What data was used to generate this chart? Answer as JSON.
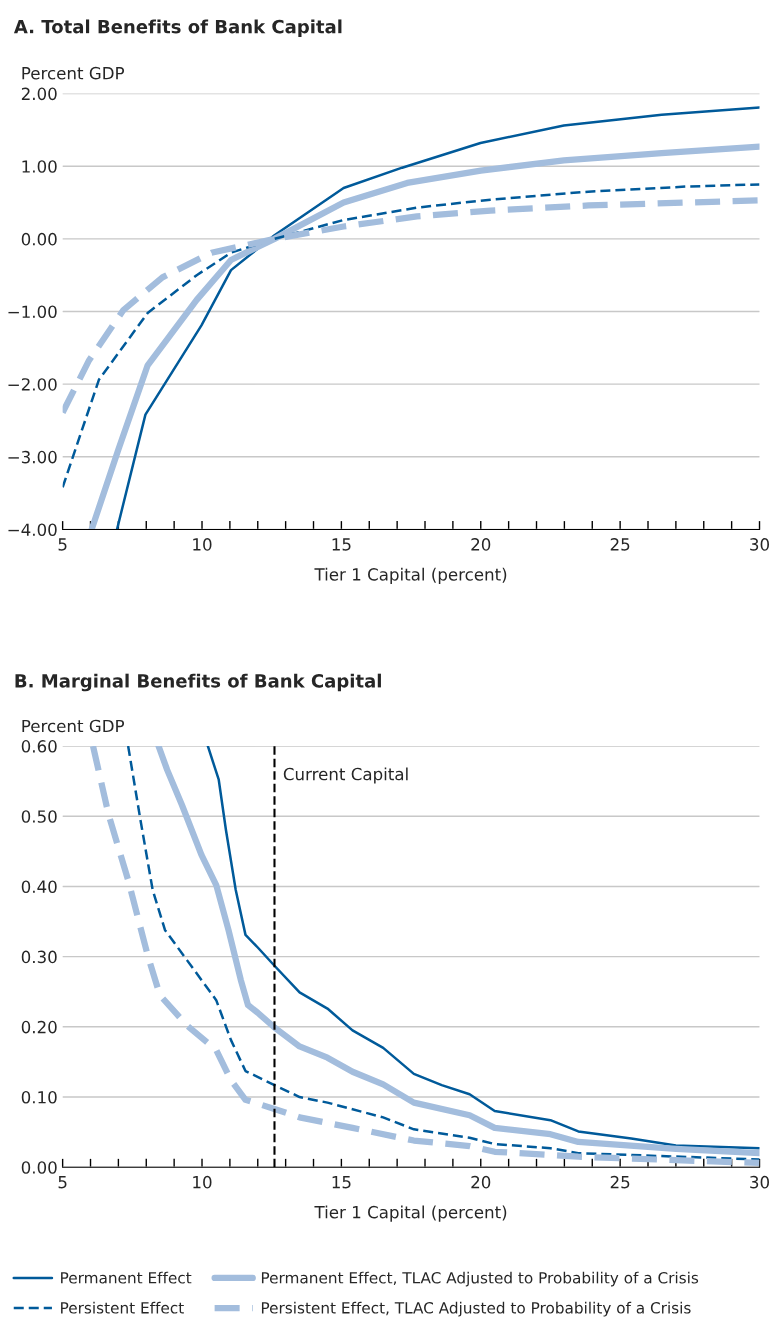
{
  "chart_data": [
    {
      "type": "line",
      "title": "A. Total Benefits of Bank Capital",
      "ylabel": "Percent GDP",
      "xlabel": "Tier 1 Capital (percent)",
      "xlim": [
        5,
        30
      ],
      "xticks": [
        5,
        {
          "value": 6,
          "label": null
        },
        {
          "value": 7,
          "label": null
        },
        {
          "value": 8,
          "label": null
        },
        {
          "value": 9,
          "label": null
        },
        10,
        {
          "value": 11,
          "label": null
        },
        {
          "value": 12,
          "label": null
        },
        {
          "value": 13,
          "label": null
        },
        {
          "value": 14,
          "label": null
        },
        15,
        {
          "value": 16,
          "label": null
        },
        {
          "value": 17,
          "label": null
        },
        {
          "value": 18,
          "label": null
        },
        {
          "value": 19,
          "label": null
        },
        20,
        {
          "value": 21,
          "label": null
        },
        {
          "value": 22,
          "label": null
        },
        {
          "value": 23,
          "label": null
        },
        {
          "value": 24,
          "label": null
        },
        25,
        {
          "value": 26,
          "label": null
        },
        {
          "value": 27,
          "label": null
        },
        {
          "value": 28,
          "label": null
        },
        {
          "value": 29,
          "label": null
        },
        30
      ],
      "ylim": [
        -4,
        2
      ],
      "yticks": [
        {
          "value": -4,
          "label": "−4.00"
        },
        {
          "value": -3,
          "label": "−3.00"
        },
        {
          "value": -2,
          "label": "−2.00"
        },
        {
          "value": -1,
          "label": "−1.00"
        },
        {
          "value": 0,
          "label": "0.00"
        },
        {
          "value": 1,
          "label": "1.00"
        },
        {
          "value": 2,
          "label": "2.00"
        }
      ],
      "grid": "y",
      "legend": false,
      "series": [
        {
          "color": "#005a9a",
          "line_style": "solid",
          "x": [
            6.95,
            7.97,
            9.98,
            11.04,
            12.6,
            15.08,
            17.18,
            19.99,
            22.98,
            26.49,
            30
          ],
          "values": [
            -4.0,
            -2.42,
            -1.19,
            -0.43,
            0.05,
            0.7,
            0.98,
            1.32,
            1.56,
            1.71,
            1.81
          ]
        },
        {
          "color": "#a3bddd",
          "line_style": "solid",
          "x": [
            6.04,
            7.0,
            8.05,
            9.81,
            11.04,
            12.6,
            15.08,
            17.36,
            20,
            22.98,
            26.49,
            30
          ],
          "values": [
            -4.0,
            -2.9,
            -1.74,
            -0.84,
            -0.29,
            0.0,
            0.5,
            0.77,
            0.94,
            1.08,
            1.18,
            1.27
          ]
        },
        {
          "color": "#005a9a",
          "line_style": "dashed",
          "x": [
            5.0,
            6.3,
            8.05,
            9.81,
            11.04,
            12.6,
            15.08,
            17.71,
            20.35,
            23.86,
            27.37,
            30
          ],
          "values": [
            -3.42,
            -1.94,
            -1.02,
            -0.5,
            -0.19,
            0.0,
            0.26,
            0.43,
            0.54,
            0.65,
            0.72,
            0.75
          ]
        },
        {
          "color": "#a3bddd",
          "line_style": "dashed",
          "x": [
            5.0,
            5.95,
            7.18,
            8.58,
            10.34,
            12.6,
            15.08,
            17.71,
            20.35,
            23.86,
            30
          ],
          "values": [
            -2.39,
            -1.67,
            -0.98,
            -0.53,
            -0.19,
            0.0,
            0.17,
            0.31,
            0.39,
            0.46,
            0.53
          ]
        }
      ]
    },
    {
      "type": "line",
      "title": "B. Marginal Benefits of Bank Capital",
      "ylabel": "Percent GDP",
      "xlabel": "Tier 1 Capital (percent)",
      "xlim": [
        5,
        30
      ],
      "xticks": [
        5,
        {
          "value": 6,
          "label": null
        },
        {
          "value": 7,
          "label": null
        },
        {
          "value": 8,
          "label": null
        },
        {
          "value": 9,
          "label": null
        },
        10,
        {
          "value": 11,
          "label": null
        },
        {
          "value": 12,
          "label": null
        },
        {
          "value": 13,
          "label": null
        },
        {
          "value": 14,
          "label": null
        },
        15,
        {
          "value": 16,
          "label": null
        },
        {
          "value": 17,
          "label": null
        },
        {
          "value": 18,
          "label": null
        },
        {
          "value": 19,
          "label": null
        },
        20,
        {
          "value": 21,
          "label": null
        },
        {
          "value": 22,
          "label": null
        },
        {
          "value": 23,
          "label": null
        },
        {
          "value": 24,
          "label": null
        },
        25,
        {
          "value": 26,
          "label": null
        },
        {
          "value": 27,
          "label": null
        },
        {
          "value": 28,
          "label": null
        },
        {
          "value": 29,
          "label": null
        },
        30
      ],
      "ylim": [
        0,
        0.6
      ],
      "yticks": [
        {
          "value": 0,
          "label": "0.00"
        },
        {
          "value": 0.1,
          "label": "0.10"
        },
        {
          "value": 0.2,
          "label": "0.20"
        },
        {
          "value": 0.3,
          "label": "0.30"
        },
        {
          "value": 0.4,
          "label": "0.40"
        },
        {
          "value": 0.5,
          "label": "0.50"
        },
        {
          "value": 0.6,
          "label": "0.60"
        }
      ],
      "grid": "y",
      "legend": "bottom",
      "ref_lines": [
        {
          "axis": "x",
          "value": 12.6,
          "label": "Current Capital",
          "color": "#000000",
          "line_style": "dashed"
        }
      ],
      "series": [
        {
          "name": "Permanent Effect",
          "color": "#005a9a",
          "line_style": "solid",
          "x": [
            10.21,
            10.6,
            10.86,
            11.21,
            11.56,
            12.0,
            12.6,
            13.5,
            14.5,
            15.4,
            16.5,
            17.6,
            18.6,
            19.6,
            20.5,
            22.5,
            23.5,
            25.4,
            27.0,
            30
          ],
          "values": [
            0.6,
            0.552,
            0.48,
            0.395,
            0.331,
            0.313,
            0.287,
            0.249,
            0.226,
            0.195,
            0.17,
            0.133,
            0.117,
            0.104,
            0.08,
            0.067,
            0.051,
            0.041,
            0.031,
            0.027
          ]
        },
        {
          "name": "Permanent Effect, TLAC Adjusted to Probability of a Crisis",
          "color": "#a3bddd",
          "line_style": "solid",
          "x": [
            8.44,
            8.75,
            9.28,
            9.98,
            10.51,
            10.95,
            11.39,
            11.65,
            12.0,
            12.6,
            13.5,
            14.5,
            15.4,
            16.5,
            17.6,
            19.6,
            20.5,
            22.5,
            23.5,
            27.0,
            30
          ],
          "values": [
            0.6,
            0.566,
            0.516,
            0.445,
            0.402,
            0.338,
            0.267,
            0.231,
            0.22,
            0.199,
            0.172,
            0.156,
            0.136,
            0.118,
            0.092,
            0.074,
            0.056,
            0.047,
            0.036,
            0.026,
            0.02
          ]
        },
        {
          "name": "Persistent Effect",
          "color": "#005a9a",
          "line_style": "dashed",
          "x": [
            7.35,
            7.79,
            8.23,
            8.67,
            9.46,
            10.51,
            11.04,
            11.56,
            12.6,
            13.5,
            14.5,
            16.5,
            17.6,
            19.6,
            20.5,
            22.5,
            23.5,
            30
          ],
          "values": [
            0.6,
            0.495,
            0.395,
            0.338,
            0.295,
            0.238,
            0.181,
            0.137,
            0.117,
            0.1,
            0.092,
            0.071,
            0.054,
            0.042,
            0.033,
            0.027,
            0.02,
            0.011
          ]
        },
        {
          "name": "Persistent Effect, TLAC Adjusted to Probability of a Crisis",
          "color": "#a3bddd",
          "line_style": "dashed",
          "x": [
            6.09,
            6.65,
            7.35,
            8.05,
            8.49,
            9.46,
            10.51,
            11.04,
            11.56,
            12.6,
            13.5,
            15.4,
            17.6,
            19.6,
            20.5,
            23.5,
            27.0,
            30
          ],
          "values": [
            0.6,
            0.502,
            0.409,
            0.302,
            0.245,
            0.202,
            0.167,
            0.124,
            0.096,
            0.083,
            0.071,
            0.056,
            0.038,
            0.03,
            0.022,
            0.015,
            0.01,
            0.006
          ]
        }
      ]
    }
  ]
}
